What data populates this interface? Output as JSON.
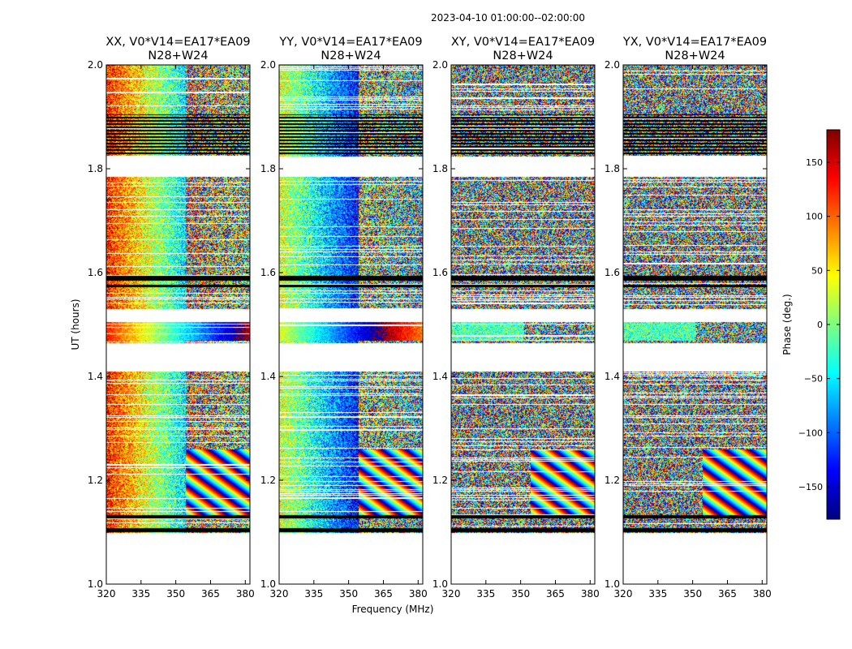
{
  "suptitle": "2023-04-10  01:00:00--02:00:00",
  "xlabel": "Frequency (MHz)",
  "ylabel": "UT (hours)",
  "colorbar": {
    "label": "Phase (deg.)",
    "range": [
      -180,
      180
    ],
    "ticks": [
      150,
      100,
      50,
      0,
      -50,
      -100,
      -150
    ],
    "tick_labels": [
      "150",
      "100",
      "50",
      "0",
      "−50",
      "−100",
      "−150"
    ],
    "colormap": "jet"
  },
  "chart_data": [
    {
      "type": "heatmap",
      "title_line1": "XX, V0*V14=EA17*EA09",
      "title_line2": "N28+W24",
      "xlim": [
        320,
        382
      ],
      "ylim": [
        1.0,
        2.0
      ],
      "xticks": [
        320,
        335,
        350,
        365,
        380
      ],
      "yticks": [
        1.0,
        1.2,
        1.4,
        1.6,
        1.8,
        2.0
      ],
      "ytick_labels": [
        "1.0",
        "1.2",
        "1.4",
        "1.6",
        "1.8",
        "2.0"
      ]
    },
    {
      "type": "heatmap",
      "title_line1": "YY, V0*V14=EA17*EA09",
      "title_line2": "N28+W24",
      "xlim": [
        320,
        382
      ],
      "ylim": [
        1.0,
        2.0
      ],
      "xticks": [
        320,
        335,
        350,
        365,
        380
      ],
      "yticks": [
        1.0,
        1.2,
        1.4,
        1.6,
        1.8,
        2.0
      ],
      "ytick_labels": [
        "1.0",
        "1.2",
        "1.4",
        "1.6",
        "1.8",
        "2.0"
      ]
    },
    {
      "type": "heatmap",
      "title_line1": "XY, V0*V14=EA17*EA09",
      "title_line2": "N28+W24",
      "xlim": [
        320,
        382
      ],
      "ylim": [
        1.0,
        2.0
      ],
      "xticks": [
        320,
        335,
        350,
        365,
        380
      ],
      "yticks": [
        1.0,
        1.2,
        1.4,
        1.6,
        1.8,
        2.0
      ],
      "ytick_labels": [
        "1.0",
        "1.2",
        "1.4",
        "1.6",
        "1.8",
        "2.0"
      ]
    },
    {
      "type": "heatmap",
      "title_line1": "YX, V0*V14=EA17*EA09",
      "title_line2": "N28+W24",
      "xlim": [
        320,
        382
      ],
      "ylim": [
        1.0,
        2.0
      ],
      "xticks": [
        320,
        335,
        350,
        365,
        380
      ],
      "yticks": [
        1.0,
        1.2,
        1.4,
        1.6,
        1.8,
        2.0
      ],
      "ytick_labels": [
        "1.0",
        "1.2",
        "1.4",
        "1.6",
        "1.8",
        "2.0"
      ]
    }
  ]
}
